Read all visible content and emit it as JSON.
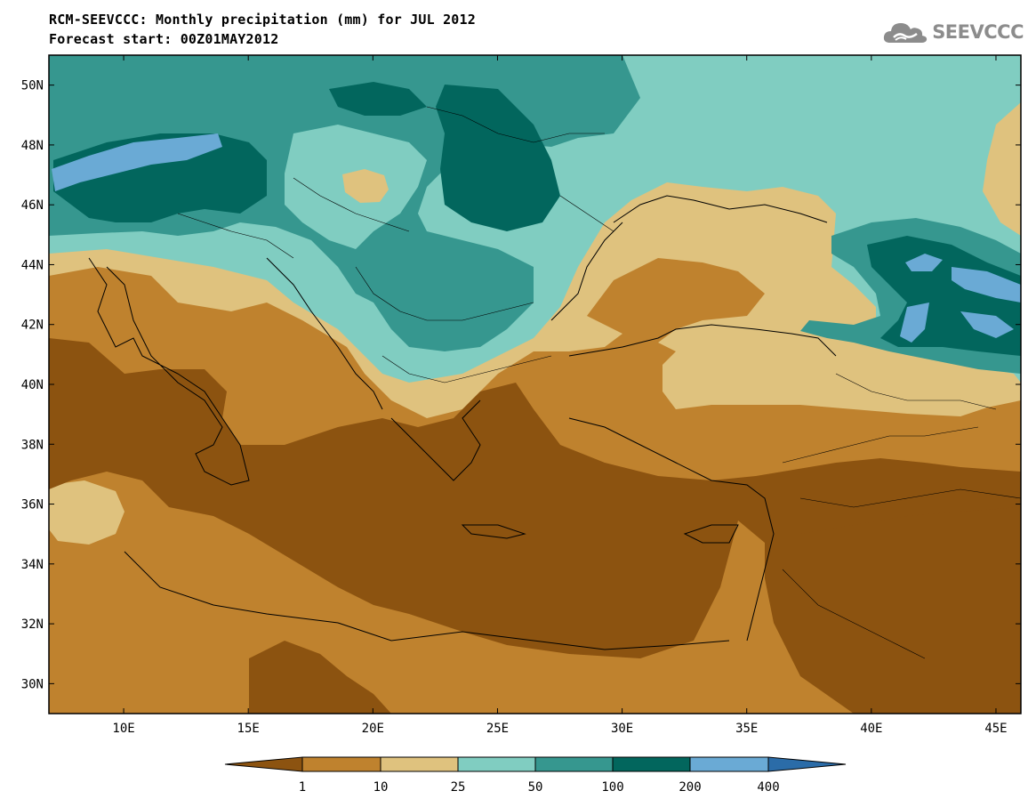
{
  "title": {
    "line1": "RCM-SEEVCCC: Monthly precipitation (mm) for JUL 2012",
    "line2": "Forecast start: 00Z01MAY2012"
  },
  "logo": {
    "text": "SEEVCCC",
    "icon": "cloud-logo-icon"
  },
  "axes": {
    "lat_labels": [
      "50N",
      "48N",
      "46N",
      "44N",
      "42N",
      "40N",
      "38N",
      "36N",
      "34N",
      "32N",
      "30N"
    ],
    "lat_values": [
      50,
      48,
      46,
      44,
      42,
      40,
      38,
      36,
      34,
      32,
      30
    ],
    "lon_labels": [
      "10E",
      "15E",
      "20E",
      "25E",
      "30E",
      "35E",
      "40E",
      "45E"
    ],
    "lon_values": [
      10,
      15,
      20,
      25,
      30,
      35,
      40,
      45
    ],
    "lon_range": [
      7,
      46
    ],
    "lat_range": [
      29,
      51
    ]
  },
  "colorbar": {
    "labels": [
      "1",
      "10",
      "25",
      "50",
      "100",
      "200",
      "400"
    ],
    "colors": [
      "#8c5310",
      "#bf822e",
      "#dfc27e",
      "#80cdc1",
      "#36978f",
      "#02665d",
      "#6aaad5",
      "#2b6ca8"
    ]
  }
}
